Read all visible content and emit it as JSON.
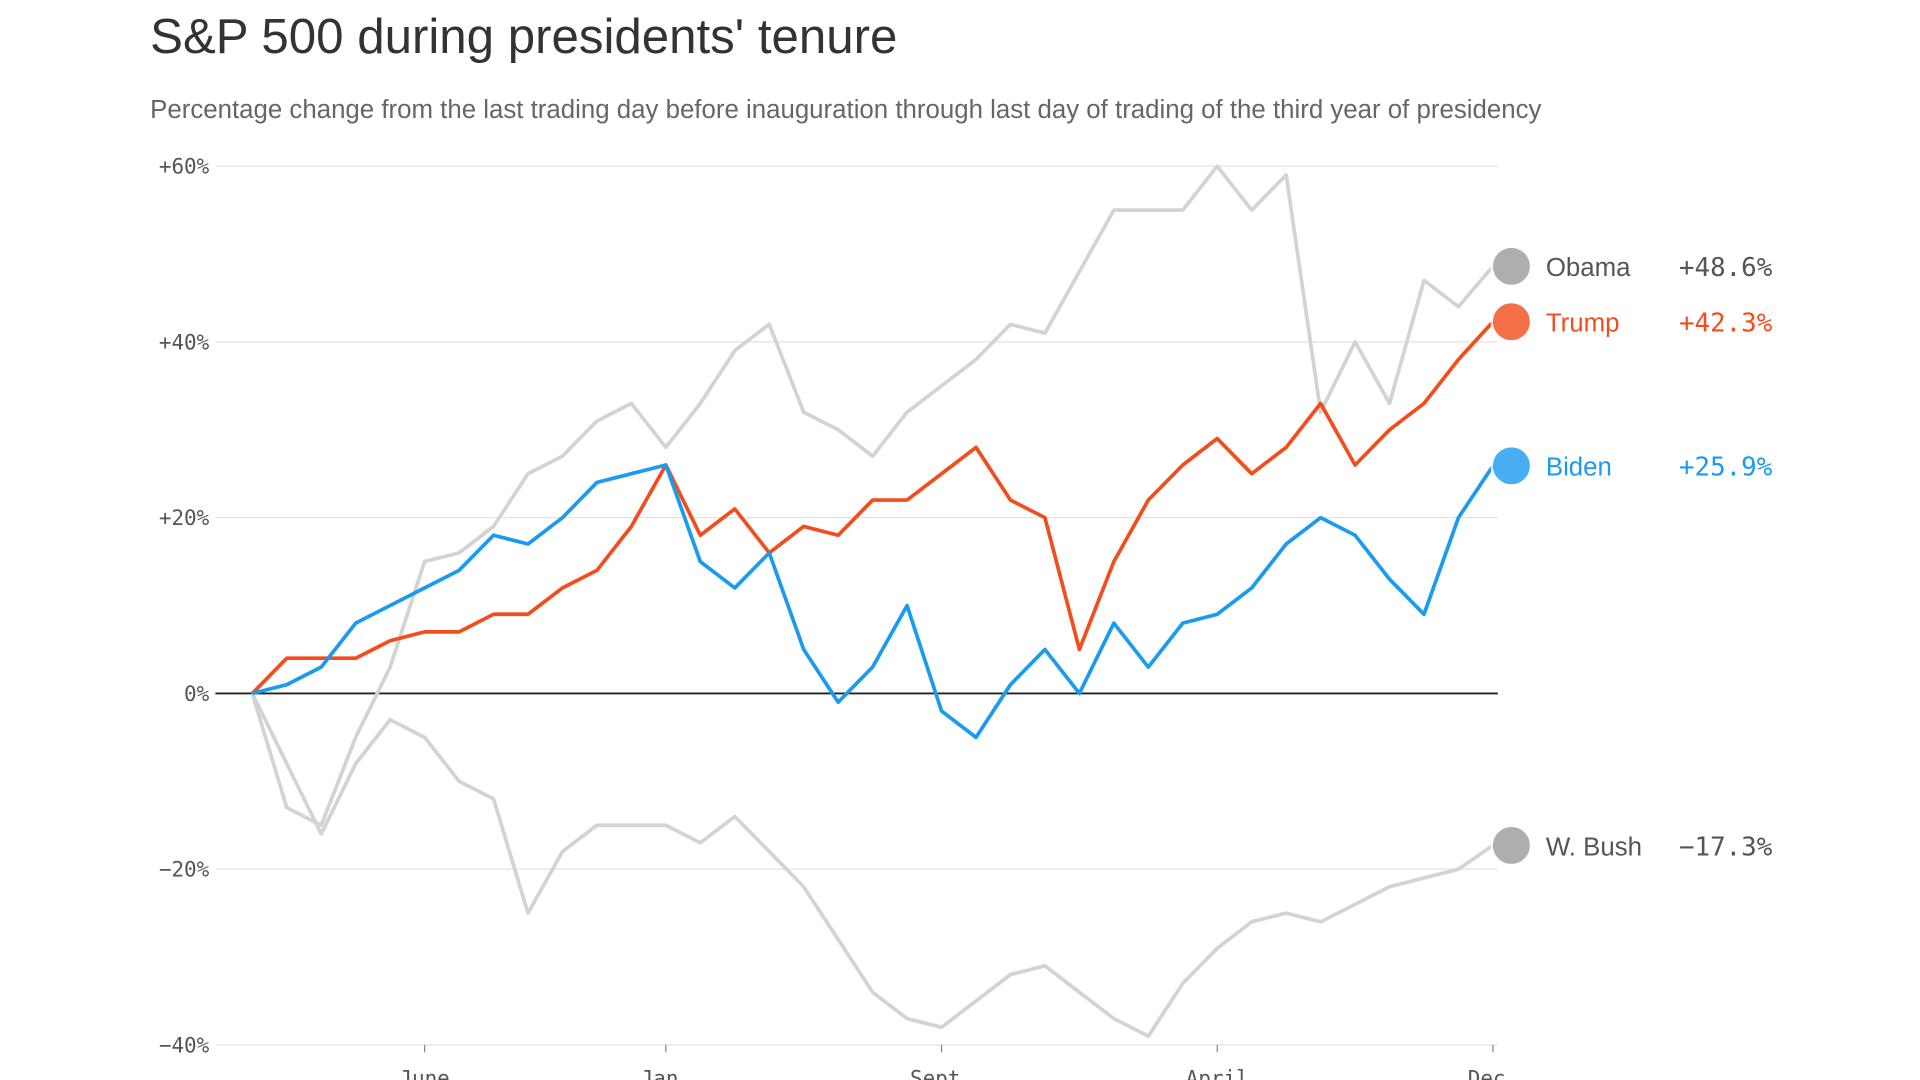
{
  "chart_data": {
    "type": "line",
    "title": "S&P 500 during presidents' tenure",
    "subtitle": "Percentage change from the last trading day before inauguration through last day of trading of the third year of presidency",
    "categories": [
      null,
      null,
      null,
      null,
      null,
      "June",
      null,
      null,
      null,
      null,
      null,
      null,
      "Jan.",
      null,
      null,
      null,
      null,
      null,
      null,
      null,
      "Sept.",
      null,
      null,
      null,
      null,
      null,
      null,
      null,
      "April",
      null,
      null,
      null,
      null,
      null,
      null,
      null,
      "Dec."
    ],
    "ylim": [
      -40,
      60
    ],
    "yticks": [
      {
        "value": 60,
        "label": "+60%"
      },
      {
        "value": 40,
        "label": "+40%"
      },
      {
        "value": 20,
        "label": "+20%"
      },
      {
        "value": 0,
        "label": "0%"
      },
      {
        "value": -20,
        "label": "−20%"
      },
      {
        "value": -40,
        "label": "−40%"
      }
    ],
    "grid": true,
    "series": [
      {
        "name": "Obama",
        "color": "#d3d3d3",
        "label_color": "#555555",
        "values": [
          0,
          -13,
          -15,
          -5,
          3,
          15,
          16,
          19,
          25,
          27,
          31,
          33,
          28,
          33,
          39,
          42,
          32,
          30,
          27,
          32,
          35,
          38,
          42,
          41,
          48,
          55,
          55,
          55,
          60,
          55,
          59,
          32,
          40,
          33,
          47,
          44,
          48.6
        ],
        "value_labels": [
          null,
          null,
          null,
          null,
          null,
          null,
          null,
          null,
          null,
          null,
          null,
          null,
          null,
          null,
          null,
          null,
          null,
          null,
          null,
          null,
          null,
          null,
          null,
          null,
          null,
          null,
          null,
          null,
          null,
          null,
          null,
          null,
          null,
          null,
          null,
          null,
          "+48.6%"
        ]
      },
      {
        "name": "W. Bush",
        "color": "#d3d3d3",
        "label_color": "#555555",
        "values": [
          0,
          -8,
          -16,
          -8,
          -3,
          -5,
          -10,
          -12,
          -25,
          -18,
          -15,
          -15,
          -15,
          -17,
          -14,
          -18,
          -22,
          -28,
          -34,
          -37,
          -38,
          -35,
          -32,
          -31,
          -34,
          -37,
          -39,
          -33,
          -29,
          -26,
          -25,
          -26,
          -24,
          -22,
          -21,
          -20,
          -17.3
        ],
        "value_labels": [
          null,
          null,
          null,
          null,
          null,
          null,
          null,
          null,
          null,
          null,
          null,
          null,
          null,
          null,
          null,
          null,
          null,
          null,
          null,
          null,
          null,
          null,
          null,
          null,
          null,
          null,
          null,
          null,
          null,
          null,
          null,
          null,
          null,
          null,
          null,
          null,
          "−17.3%"
        ]
      },
      {
        "name": "Trump",
        "color": "#f24d1c",
        "label_color": "#f24d1c",
        "values": [
          0,
          4,
          4,
          4,
          6,
          7,
          7,
          9,
          9,
          12,
          14,
          19,
          26,
          18,
          21,
          16,
          19,
          18,
          22,
          22,
          25,
          28,
          22,
          20,
          5,
          15,
          22,
          26,
          29,
          25,
          28,
          33,
          26,
          30,
          33,
          38,
          42.3
        ],
        "value_labels": [
          null,
          null,
          null,
          null,
          null,
          null,
          null,
          null,
          null,
          null,
          null,
          null,
          null,
          null,
          null,
          null,
          null,
          null,
          null,
          null,
          null,
          null,
          null,
          null,
          null,
          null,
          null,
          null,
          null,
          null,
          null,
          null,
          null,
          null,
          null,
          null,
          "+42.3%"
        ]
      },
      {
        "name": "Biden",
        "color": "#1a9bf0",
        "label_color": "#1a9bf0",
        "values": [
          0,
          1,
          3,
          8,
          10,
          12,
          14,
          18,
          17,
          20,
          24,
          25,
          26,
          15,
          12,
          16,
          5,
          -1,
          3,
          10,
          -2,
          -5,
          1,
          5,
          0,
          8,
          3,
          8,
          9,
          12,
          17,
          20,
          18,
          13,
          9,
          20,
          25.9
        ],
        "value_labels": [
          null,
          null,
          null,
          null,
          null,
          null,
          null,
          null,
          null,
          null,
          null,
          null,
          null,
          null,
          null,
          null,
          null,
          null,
          null,
          null,
          null,
          null,
          null,
          null,
          null,
          null,
          null,
          null,
          null,
          null,
          null,
          null,
          null,
          null,
          null,
          null,
          "+25.9%"
        ]
      }
    ]
  }
}
